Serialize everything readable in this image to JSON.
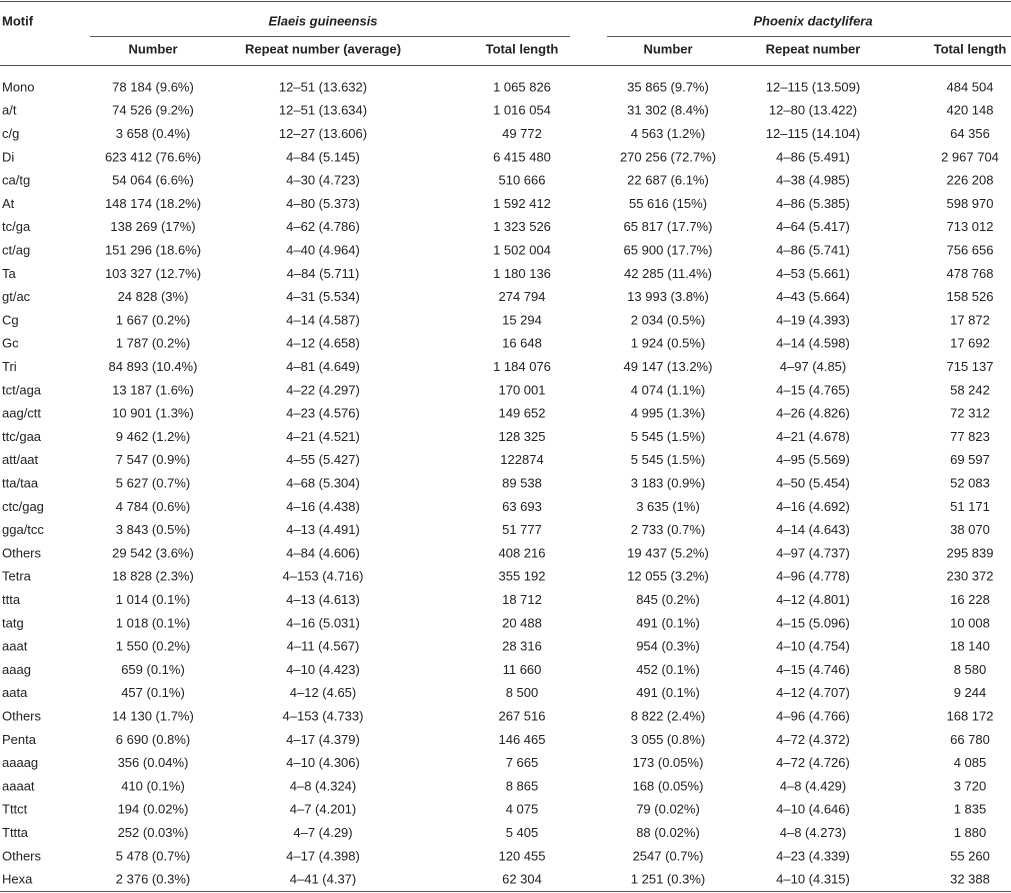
{
  "header": {
    "motif": "Motif",
    "groups": [
      "Elaeis guineensis",
      "Phoenix dactylifera"
    ],
    "columns": [
      "Number",
      "Repeat number (average)",
      "Total length",
      "Number",
      "Repeat number",
      "Total length"
    ]
  },
  "table": {
    "rows": [
      [
        "Mono",
        "78 184 (9.6%)",
        "12–51 (13.632)",
        "1 065 826",
        "35 865 (9.7%)",
        "12–115 (13.509)",
        "484 504"
      ],
      [
        "a/t",
        "74 526 (9.2%)",
        "12–51 (13.634)",
        "1 016 054",
        "31 302 (8.4%)",
        "12–80 (13.422)",
        "420 148"
      ],
      [
        "c/g",
        "3 658 (0.4%)",
        "12–27 (13.606)",
        "49 772",
        "4 563 (1.2%)",
        "12–115 (14.104)",
        "64 356"
      ],
      [
        "Di",
        "623 412 (76.6%)",
        "4–84 (5.145)",
        "6 415 480",
        "270 256 (72.7%)",
        "4–86 (5.491)",
        "2 967 704"
      ],
      [
        "ca/tg",
        "54 064 (6.6%)",
        "4–30 (4.723)",
        "510 666",
        "22 687 (6.1%)",
        "4–38 (4.985)",
        "226 208"
      ],
      [
        "At",
        "148 174 (18.2%)",
        "4–80 (5.373)",
        "1 592 412",
        "55 616 (15%)",
        "4–86 (5.385)",
        "598 970"
      ],
      [
        "tc/ga",
        "138 269 (17%)",
        "4–62 (4.786)",
        "1 323 526",
        "65 817 (17.7%)",
        "4–64 (5.417)",
        "713 012"
      ],
      [
        "ct/ag",
        "151 296 (18.6%)",
        "4–40 (4.964)",
        "1 502 004",
        "65 900 (17.7%)",
        "4–86 (5.741)",
        "756 656"
      ],
      [
        "Ta",
        "103 327 (12.7%)",
        "4–84 (5.711)",
        "1 180 136",
        "42 285 (11.4%)",
        "4–53 (5.661)",
        "478 768"
      ],
      [
        "gt/ac",
        "24 828 (3%)",
        "4–31 (5.534)",
        "274 794",
        "13 993 (3.8%)",
        "4–43 (5.664)",
        "158 526"
      ],
      [
        "Cg",
        "1 667 (0.2%)",
        "4–14 (4.587)",
        "15 294",
        "2 034 (0.5%)",
        "4–19 (4.393)",
        "17 872"
      ],
      [
        "Gc",
        "1 787 (0.2%)",
        "4–12 (4.658)",
        "16 648",
        "1 924 (0.5%)",
        "4–14 (4.598)",
        "17 692"
      ],
      [
        "Tri",
        "84 893 (10.4%)",
        "4–81 (4.649)",
        "1 184 076",
        "49 147 (13.2%)",
        "4–97 (4.85)",
        "715 137"
      ],
      [
        "tct/aga",
        "13 187 (1.6%)",
        "4–22 (4.297)",
        "170 001",
        "4 074 (1.1%)",
        "4–15 (4.765)",
        "58 242"
      ],
      [
        "aag/ctt",
        "10 901 (1.3%)",
        "4–23 (4.576)",
        "149 652",
        "4 995 (1.3%)",
        "4–26 (4.826)",
        "72 312"
      ],
      [
        "ttc/gaa",
        "9 462 (1.2%)",
        "4–21 (4.521)",
        "128 325",
        "5 545 (1.5%)",
        "4–21 (4.678)",
        "77 823"
      ],
      [
        "att/aat",
        "7 547 (0.9%)",
        "4–55 (5.427)",
        "122874",
        "5 545 (1.5%)",
        "4–95 (5.569)",
        "69 597"
      ],
      [
        "tta/taa",
        "5 627 (0.7%)",
        "4–68 (5.304)",
        "89 538",
        "3 183 (0.9%)",
        "4–50 (5.454)",
        "52 083"
      ],
      [
        "ctc/gag",
        "4 784 (0.6%)",
        "4–16 (4.438)",
        "63 693",
        "3 635 (1%)",
        "4–16 (4.692)",
        "51 171"
      ],
      [
        "gga/tcc",
        "3 843 (0.5%)",
        "4–13 (4.491)",
        "51 777",
        "2 733 (0.7%)",
        "4–14 (4.643)",
        "38 070"
      ],
      [
        "Others",
        "29 542 (3.6%)",
        "4–84 (4.606)",
        "408 216",
        "19 437 (5.2%)",
        "4–97 (4.737)",
        "295 839"
      ],
      [
        "Tetra",
        "18 828 (2.3%)",
        "4–153 (4.716)",
        "355 192",
        "12 055 (3.2%)",
        "4–96 (4.778)",
        "230 372"
      ],
      [
        "ttta",
        "1 014 (0.1%)",
        "4–13 (4.613)",
        "18 712",
        "845 (0.2%)",
        "4–12 (4.801)",
        "16 228"
      ],
      [
        "tatg",
        "1 018 (0.1%)",
        "4–16 (5.031)",
        "20 488",
        "491 (0.1%)",
        "4–15 (5.096)",
        "10 008"
      ],
      [
        "aaat",
        "1 550 (0.2%)",
        "4–11 (4.567)",
        "28 316",
        "954 (0.3%)",
        "4–10 (4.754)",
        "18 140"
      ],
      [
        "aaag",
        "659 (0.1%)",
        "4–10 (4.423)",
        "11 660",
        "452 (0.1%)",
        "4–15 (4.746)",
        "8 580"
      ],
      [
        "aata",
        "457 (0.1%)",
        "4–12 (4.65)",
        "8 500",
        "491 (0.1%)",
        "4–12 (4.707)",
        "9 244"
      ],
      [
        "Others",
        "14 130 (1.7%)",
        "4–153 (4.733)",
        "267 516",
        "8 822 (2.4%)",
        "4–96 (4.766)",
        "168 172"
      ],
      [
        "Penta",
        "6 690 (0.8%)",
        "4–17 (4.379)",
        "146 465",
        "3 055 (0.8%)",
        "4–72 (4.372)",
        "66 780"
      ],
      [
        "aaaag",
        "356 (0.04%)",
        "4–10 (4.306)",
        "7 665",
        "173 (0.05%)",
        "4–72 (4.726)",
        "4 085"
      ],
      [
        "aaaat",
        "410 (0.1%)",
        "4–8 (4.324)",
        "8 865",
        "168 (0.05%)",
        "4–8 (4.429)",
        "3 720"
      ],
      [
        "Tttct",
        "194 (0.02%)",
        "4–7 (4.201)",
        "4 075",
        "79 (0.02%)",
        "4–10 (4.646)",
        "1 835"
      ],
      [
        "Tttta",
        "252 (0.03%)",
        "4–7 (4.29)",
        "5 405",
        "88 (0.02%)",
        "4–8 (4.273)",
        "1 880"
      ],
      [
        "Others",
        "5 478 (0.7%)",
        "4–17 (4.398)",
        "120 455",
        "2547 (0.7%)",
        "4–23 (4.339)",
        "55 260"
      ],
      [
        "Hexa",
        "2 376 (0.3%)",
        "4–41 (4.37)",
        "62 304",
        "1 251 (0.3%)",
        "4–10 (4.315)",
        "32 388"
      ]
    ]
  }
}
